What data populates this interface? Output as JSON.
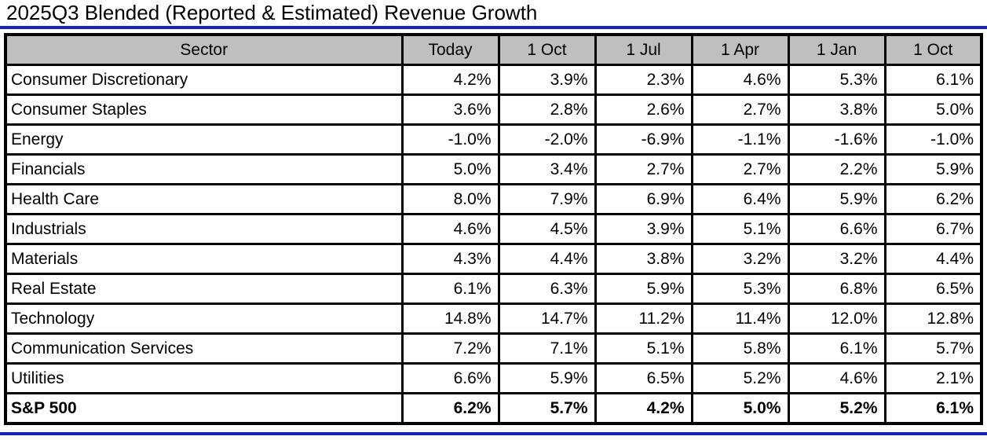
{
  "title": "2025Q3 Blended (Reported & Estimated) Revenue Growth",
  "colors": {
    "accent_blue": "#1120D2",
    "header_bg": "#BFBFBF",
    "border": "#000000",
    "cell_bg": "#FFFFFF"
  },
  "chart_data": {
    "type": "table",
    "title": "2025Q3 Blended (Reported & Estimated) Revenue Growth",
    "columns": [
      "Sector",
      "Today",
      "1 Oct",
      "1 Jul",
      "1 Apr",
      "1 Jan",
      "1 Oct"
    ],
    "rows": [
      {
        "sector": "Consumer Discretionary",
        "values": [
          "4.2%",
          "3.9%",
          "2.3%",
          "4.6%",
          "5.3%",
          "6.1%"
        ],
        "bold": false
      },
      {
        "sector": "Consumer Staples",
        "values": [
          "3.6%",
          "2.8%",
          "2.6%",
          "2.7%",
          "3.8%",
          "5.0%"
        ],
        "bold": false
      },
      {
        "sector": "Energy",
        "values": [
          "-1.0%",
          "-2.0%",
          "-6.9%",
          "-1.1%",
          "-1.6%",
          "-1.0%"
        ],
        "bold": false
      },
      {
        "sector": "Financials",
        "values": [
          "5.0%",
          "3.4%",
          "2.7%",
          "2.7%",
          "2.2%",
          "5.9%"
        ],
        "bold": false
      },
      {
        "sector": "Health Care",
        "values": [
          "8.0%",
          "7.9%",
          "6.9%",
          "6.4%",
          "5.9%",
          "6.2%"
        ],
        "bold": false
      },
      {
        "sector": "Industrials",
        "values": [
          "4.6%",
          "4.5%",
          "3.9%",
          "5.1%",
          "6.6%",
          "6.7%"
        ],
        "bold": false
      },
      {
        "sector": "Materials",
        "values": [
          "4.3%",
          "4.4%",
          "3.8%",
          "3.2%",
          "3.2%",
          "4.4%"
        ],
        "bold": false
      },
      {
        "sector": "Real Estate",
        "values": [
          "6.1%",
          "6.3%",
          "5.9%",
          "5.3%",
          "6.8%",
          "6.5%"
        ],
        "bold": false
      },
      {
        "sector": "Technology",
        "values": [
          "14.8%",
          "14.7%",
          "11.2%",
          "11.4%",
          "12.0%",
          "12.8%"
        ],
        "bold": false
      },
      {
        "sector": "Communication Services",
        "values": [
          "7.2%",
          "7.1%",
          "5.1%",
          "5.8%",
          "6.1%",
          "5.7%"
        ],
        "bold": false
      },
      {
        "sector": "Utilities",
        "values": [
          "6.6%",
          "5.9%",
          "6.5%",
          "5.2%",
          "4.6%",
          "2.1%"
        ],
        "bold": false
      },
      {
        "sector": "S&P 500",
        "values": [
          "6.2%",
          "5.7%",
          "4.2%",
          "5.0%",
          "5.2%",
          "6.1%"
        ],
        "bold": true
      }
    ]
  }
}
